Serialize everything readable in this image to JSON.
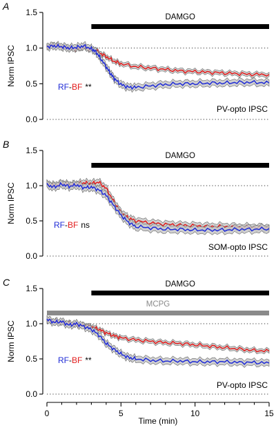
{
  "chart_data": [
    {
      "type": "line",
      "panel": "A",
      "ylabel": "Norm IPSC",
      "xlim": [
        0,
        15
      ],
      "ylim": [
        0.0,
        1.5
      ],
      "yticks": [
        "0.0",
        "0.5",
        "1.0",
        "1.5"
      ],
      "reference_line": 1.0,
      "bars": [
        {
          "label": "DAMGO",
          "start": 3,
          "end": 15,
          "color": "#000000"
        }
      ],
      "legend": {
        "rf": "RF",
        "dash": "-",
        "bf": "BF",
        "sig": "**"
      },
      "condition_label": "PV-opto IPSC",
      "colors": {
        "rf": "#1f2bd6",
        "bf": "#e21b1b",
        "band": "#c8c8c8"
      },
      "series": [
        {
          "name": "RF",
          "color": "#1f2bd6",
          "x": [
            0,
            0.5,
            1,
            1.5,
            2,
            2.5,
            3,
            3.3,
            3.6,
            4,
            4.3,
            4.6,
            5,
            5.5,
            6,
            7,
            8,
            9,
            10,
            11,
            12,
            13,
            14,
            15
          ],
          "y": [
            1.02,
            1.03,
            1.02,
            1.0,
            1.01,
            1.03,
            0.99,
            0.95,
            0.86,
            0.74,
            0.64,
            0.56,
            0.49,
            0.45,
            0.45,
            0.47,
            0.49,
            0.5,
            0.5,
            0.51,
            0.51,
            0.52,
            0.52,
            0.51
          ],
          "sem": 0.045
        },
        {
          "name": "BF",
          "color": "#e21b1b",
          "x": [
            0,
            0.5,
            1,
            1.5,
            2,
            2.5,
            3,
            3.5,
            4,
            4.5,
            5,
            6,
            7,
            8,
            9,
            10,
            11,
            12,
            13,
            14,
            15
          ],
          "y": [
            1.02,
            1.04,
            1.02,
            1.0,
            0.99,
            1.01,
            0.98,
            0.94,
            0.88,
            0.82,
            0.78,
            0.74,
            0.72,
            0.7,
            0.68,
            0.67,
            0.66,
            0.65,
            0.64,
            0.63,
            0.63
          ],
          "sem": 0.03
        }
      ]
    },
    {
      "type": "line",
      "panel": "B",
      "ylabel": "Norm IPSC",
      "xlim": [
        0,
        15
      ],
      "ylim": [
        0.0,
        1.5
      ],
      "yticks": [
        "0.0",
        "0.5",
        "1.0",
        "1.5"
      ],
      "reference_line": 1.0,
      "bars": [
        {
          "label": "DAMGO",
          "start": 3,
          "end": 15,
          "color": "#000000"
        }
      ],
      "legend": {
        "rf": "RF",
        "dash": "-",
        "bf": "BF",
        "sig": "ns"
      },
      "condition_label": "SOM-opto IPSC",
      "colors": {
        "rf": "#1f2bd6",
        "bf": "#e21b1b",
        "band": "#c8c8c8"
      },
      "series": [
        {
          "name": "RF",
          "color": "#1f2bd6",
          "x": [
            0,
            0.5,
            1,
            1.5,
            2,
            2.5,
            3,
            3.5,
            4,
            4.5,
            5,
            5.5,
            6,
            7,
            8,
            9,
            10,
            11,
            12,
            13,
            14,
            15
          ],
          "y": [
            1.01,
            0.98,
            1.02,
            0.99,
            1.01,
            0.97,
            0.98,
            0.94,
            0.86,
            0.72,
            0.58,
            0.48,
            0.42,
            0.4,
            0.38,
            0.38,
            0.37,
            0.37,
            0.37,
            0.38,
            0.38,
            0.39
          ],
          "sem": 0.05
        },
        {
          "name": "BF",
          "color": "#e21b1b",
          "x": [
            0,
            0.5,
            1,
            1.5,
            2,
            2.5,
            3,
            3.5,
            4,
            4.5,
            5,
            5.5,
            6,
            7,
            8,
            9,
            10,
            11,
            12,
            13,
            14,
            15
          ],
          "y": [
            1.02,
            1.0,
            1.03,
            1.01,
            1.02,
            1.04,
            1.03,
            1.05,
            0.96,
            0.78,
            0.62,
            0.54,
            0.5,
            0.47,
            0.45,
            0.44,
            0.43,
            0.42,
            0.42,
            0.41,
            0.41,
            0.4
          ],
          "sem": 0.045
        }
      ]
    },
    {
      "type": "line",
      "panel": "C",
      "ylabel": "Norm IPSC",
      "xlabel": "Time (min)",
      "xlim": [
        0,
        15
      ],
      "xticks": [
        "0",
        "5",
        "10",
        "15"
      ],
      "ylim": [
        0.0,
        1.5
      ],
      "yticks": [
        "0.0",
        "0.5",
        "1.0",
        "1.5"
      ],
      "reference_line": 1.0,
      "bars": [
        {
          "label": "DAMGO",
          "start": 3,
          "end": 15,
          "color": "#000000"
        },
        {
          "label": "MCPG",
          "start": 0,
          "end": 15,
          "color": "#8a8a8a"
        }
      ],
      "legend": {
        "rf": "RF",
        "dash": "-",
        "bf": "BF",
        "sig": "**"
      },
      "condition_label": "PV-opto IPSC",
      "colors": {
        "rf": "#1f2bd6",
        "bf": "#e21b1b",
        "band": "#c8c8c8"
      },
      "series": [
        {
          "name": "RF",
          "color": "#1f2bd6",
          "x": [
            0,
            0.5,
            1,
            1.5,
            2,
            2.5,
            3,
            3.5,
            4,
            4.5,
            5,
            5.5,
            6,
            7,
            8,
            9,
            10,
            11,
            12,
            13,
            14,
            15
          ],
          "y": [
            1.06,
            1.02,
            1.03,
            0.98,
            1.0,
            0.96,
            0.92,
            0.84,
            0.72,
            0.64,
            0.57,
            0.52,
            0.5,
            0.48,
            0.47,
            0.47,
            0.46,
            0.46,
            0.46,
            0.45,
            0.45,
            0.44
          ],
          "sem": 0.045
        },
        {
          "name": "BF",
          "color": "#e21b1b",
          "x": [
            0,
            0.5,
            1,
            1.5,
            2,
            2.5,
            3,
            3.5,
            4,
            4.5,
            5,
            6,
            7,
            8,
            9,
            10,
            11,
            12,
            13,
            14,
            15
          ],
          "y": [
            1.05,
            1.03,
            1.02,
            1.0,
            0.99,
            0.97,
            0.96,
            0.92,
            0.87,
            0.83,
            0.8,
            0.77,
            0.75,
            0.73,
            0.72,
            0.7,
            0.68,
            0.66,
            0.64,
            0.62,
            0.61
          ],
          "sem": 0.03
        }
      ]
    }
  ]
}
